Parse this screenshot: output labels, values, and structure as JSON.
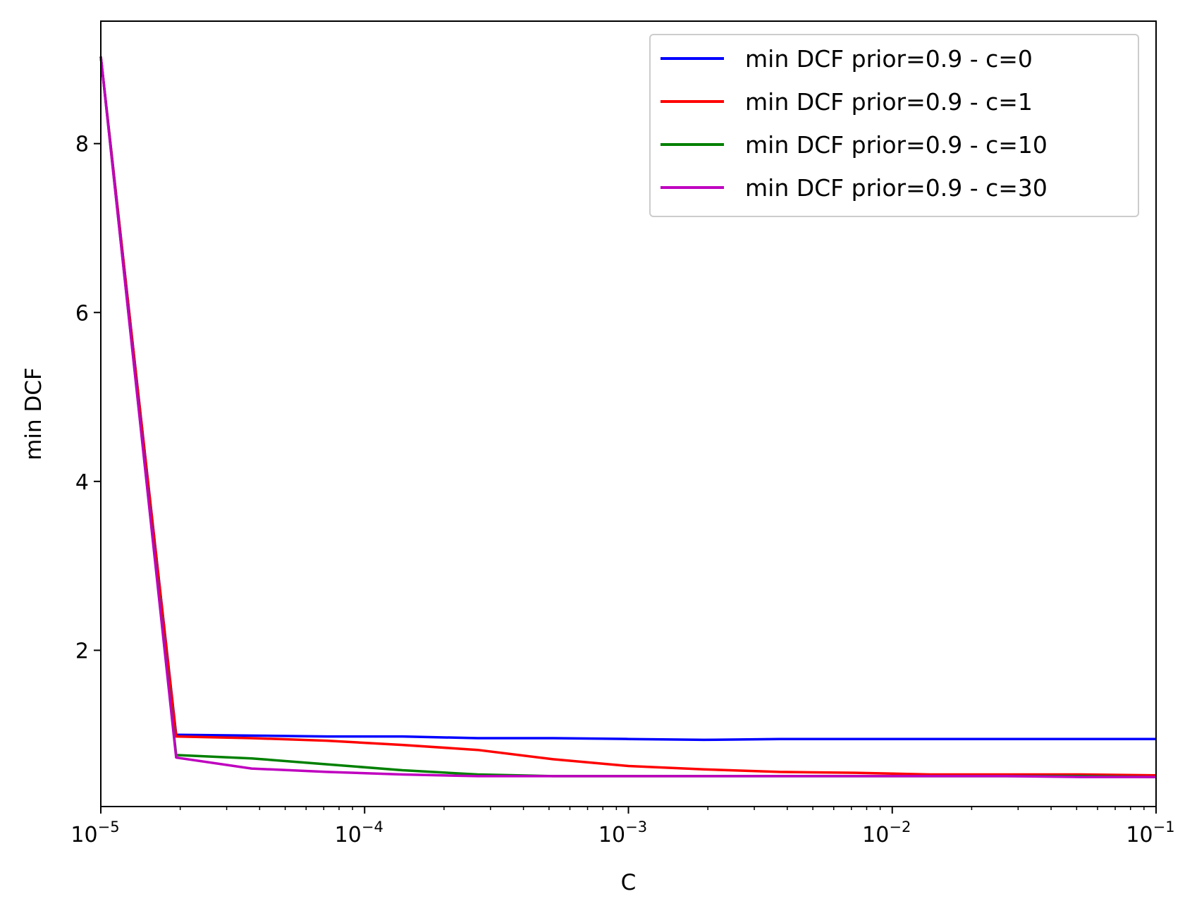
{
  "chart_data": {
    "type": "line",
    "title": "",
    "xlabel": "C",
    "ylabel": "min DCF",
    "xscale": "log",
    "xlim": [
      1e-05,
      0.1
    ],
    "ylim": [
      0.15,
      9.45
    ],
    "grid": false,
    "legend_position": "top-right",
    "x_ticks": [
      {
        "value": 1e-05,
        "base": "10",
        "exp": "−5"
      },
      {
        "value": 0.0001,
        "base": "10",
        "exp": "−4"
      },
      {
        "value": 0.001,
        "base": "10",
        "exp": "−3"
      },
      {
        "value": 0.01,
        "base": "10",
        "exp": "−2"
      },
      {
        "value": 0.1,
        "base": "10",
        "exp": "−1"
      }
    ],
    "y_ticks": [
      2,
      4,
      6,
      8
    ],
    "x": [
      1e-05,
      1.93e-05,
      3.73e-05,
      7.2e-05,
      0.000139,
      0.000268,
      0.000518,
      0.001,
      0.00193,
      0.00373,
      0.0072,
      0.0139,
      0.0268,
      0.0518,
      0.1
    ],
    "series": [
      {
        "name": "min DCF prior=0.9 - c=0",
        "color": "#0000ff",
        "values": [
          9.03,
          1.0,
          0.99,
          0.98,
          0.98,
          0.96,
          0.96,
          0.95,
          0.94,
          0.95,
          0.95,
          0.95,
          0.95,
          0.95,
          0.95
        ]
      },
      {
        "name": "min DCF prior=0.9 - c=1",
        "color": "#ff0000",
        "values": [
          9.03,
          0.98,
          0.96,
          0.93,
          0.88,
          0.82,
          0.71,
          0.63,
          0.59,
          0.56,
          0.55,
          0.53,
          0.53,
          0.53,
          0.52
        ]
      },
      {
        "name": "min DCF prior=0.9 - c=10",
        "color": "#008000",
        "values": [
          9.03,
          0.76,
          0.72,
          0.65,
          0.58,
          0.53,
          0.51,
          0.51,
          0.51,
          0.51,
          0.51,
          0.51,
          0.51,
          0.51,
          0.5
        ]
      },
      {
        "name": "min DCF prior=0.9 - c=30",
        "color": "#bf00bf",
        "values": [
          9.03,
          0.73,
          0.6,
          0.56,
          0.53,
          0.51,
          0.51,
          0.51,
          0.51,
          0.51,
          0.51,
          0.51,
          0.51,
          0.5,
          0.5
        ]
      }
    ]
  }
}
